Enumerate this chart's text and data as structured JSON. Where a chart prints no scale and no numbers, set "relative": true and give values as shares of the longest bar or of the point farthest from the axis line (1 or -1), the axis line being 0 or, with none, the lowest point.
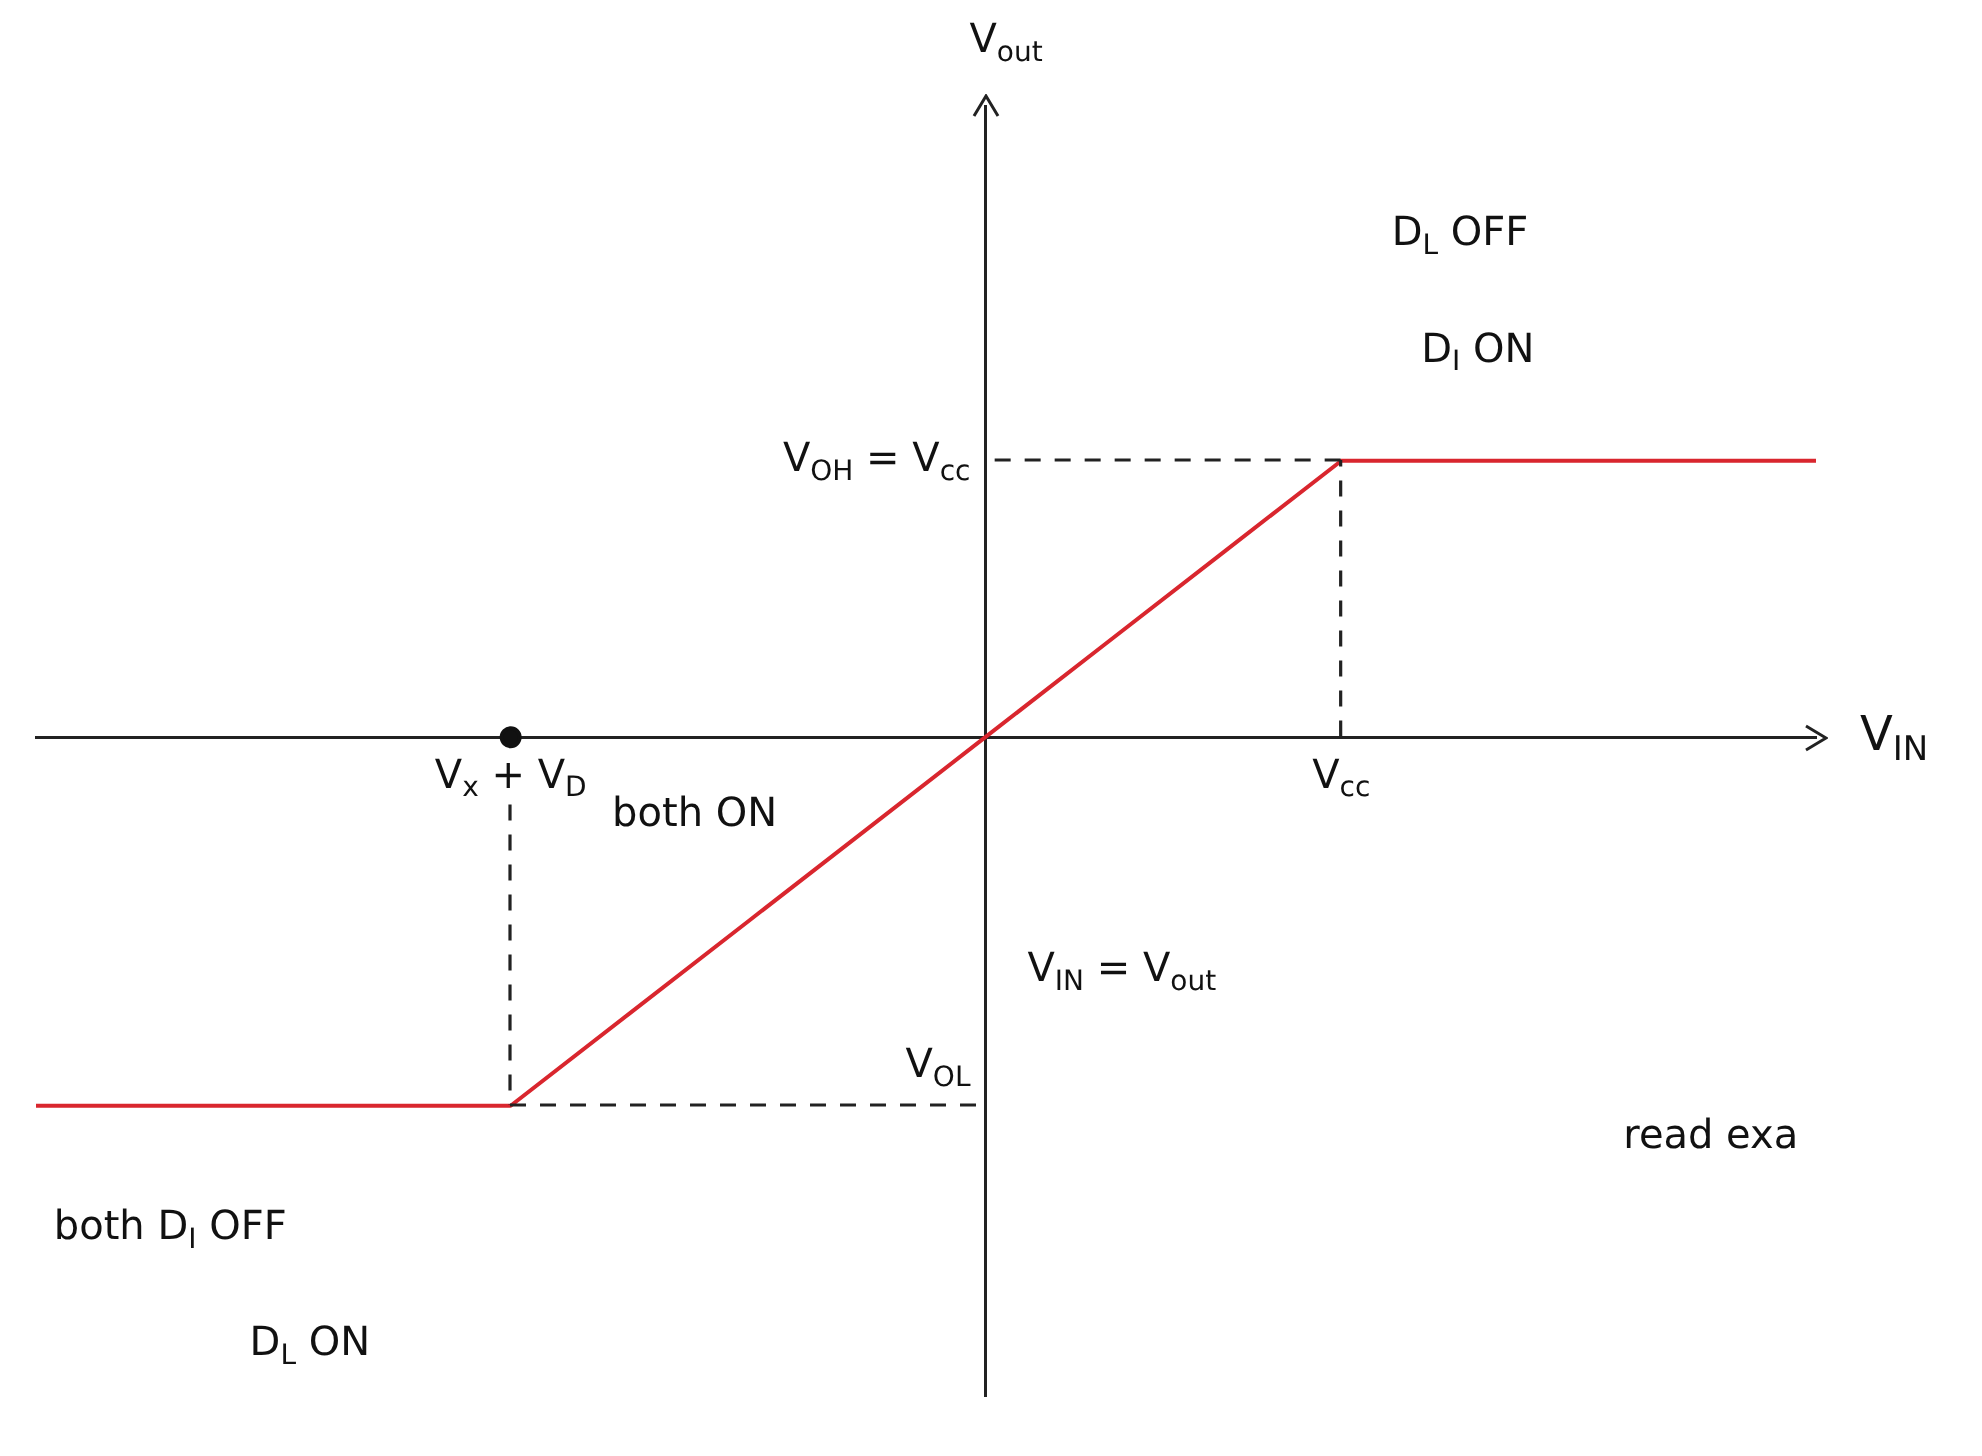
{
  "chart_data": {
    "type": "line",
    "relative": true,
    "xlabel": "V$_{IN}$",
    "categories": [
      null,
      null,
      null,
      null,
      "V$_{x}$ + V$_{D}$",
      null,
      null,
      null,
      null,
      null,
      null,
      "V$_{cc}$",
      null,
      null,
      null,
      null
    ],
    "series": [
      {
        "color": "#d9262e",
        "values": [
          -1,
          -1,
          -1,
          -1,
          -1,
          -0.75,
          -0.5,
          -0.25,
          0,
          0.25,
          0.5,
          0.75,
          0.75,
          0.75,
          0.75,
          0.75
        ],
        "marker": "none",
        "line_style": "solid"
      },
      {
        "color": "#111111",
        "values": [
          null,
          null,
          null,
          null,
          0,
          null,
          null,
          null,
          null,
          null,
          null,
          null,
          null,
          null,
          null,
          null
        ],
        "marker": "circle"
      }
    ],
    "annotations": [
      "D$_{L}$ OFF",
      "D$_{I}$ ON",
      "both ON",
      "V$_{IN}$ = V$_{out}$",
      "both D$_{I}$ OFF",
      "D$_{L}$ ON",
      "read exa",
      "V$_{OH}$ = V$_{cc}$",
      "V$_{OL}$",
      "V$_{out}$"
    ]
  }
}
